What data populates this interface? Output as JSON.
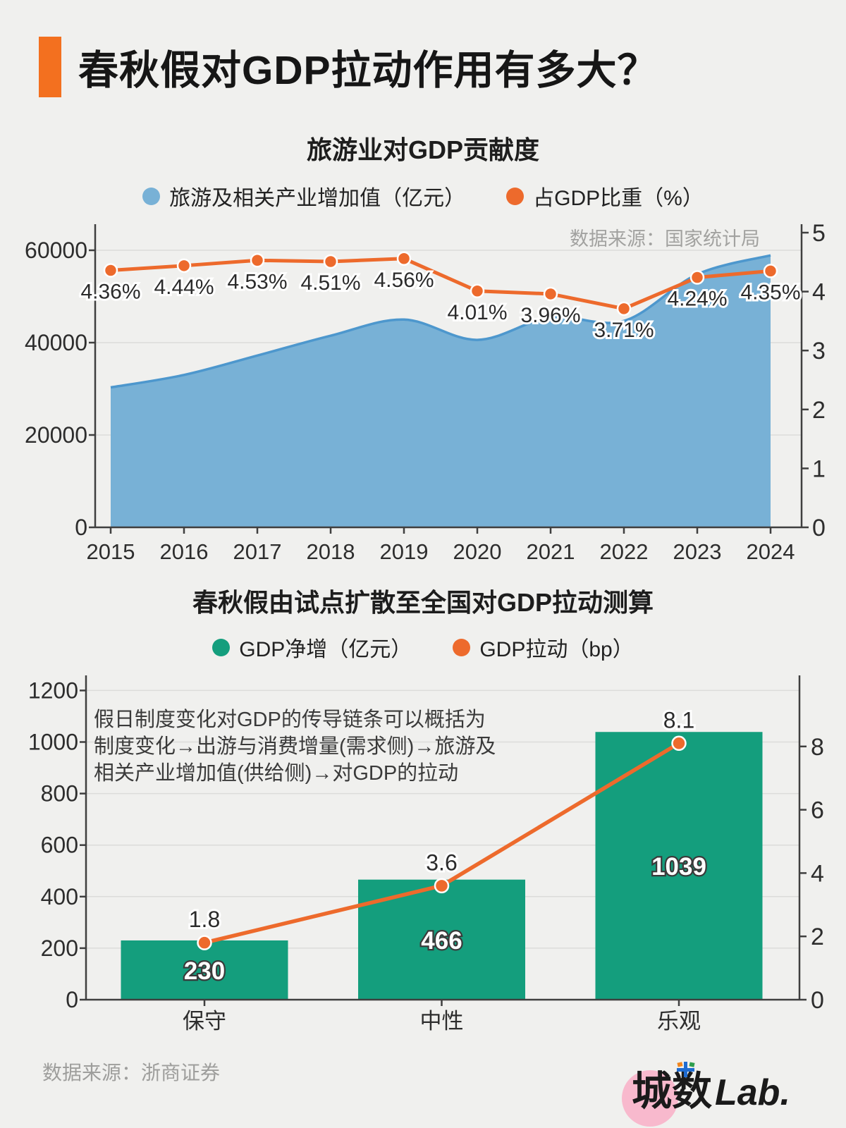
{
  "colors": {
    "background": "#f0f0ee",
    "accent_orange": "#f3701f",
    "line_orange": "#ed6a2c",
    "area_blue": "#78b1d6",
    "area_blue_stroke": "#4d97cd",
    "bar_green": "#149e7d",
    "logo_pink": "#f8b9cd"
  },
  "header": {
    "title": "春秋假对GDP拉动作用有多大？"
  },
  "chart_data": [
    {
      "type": "area+line",
      "title": "旅游业对GDP贡献度",
      "source": "数据来源：国家统计局",
      "x": [
        2015,
        2016,
        2017,
        2018,
        2019,
        2020,
        2021,
        2022,
        2023,
        2024
      ],
      "left_axis": {
        "ticks": [
          0,
          20000,
          40000,
          60000
        ],
        "max": 65600
      },
      "right_axis": {
        "ticks": [
          0,
          1,
          2,
          3,
          4,
          5
        ],
        "max": 5.1
      },
      "grid": true,
      "legend_position": "top",
      "series": [
        {
          "name": "旅游及相关产业增加值（亿元）",
          "type": "area",
          "axis": "left",
          "color": "#78b1d6",
          "stroke": "#4d97cd",
          "values": [
            30300,
            33000,
            37200,
            41500,
            45000,
            40600,
            45500,
            44700,
            54800,
            58900
          ]
        },
        {
          "name": "占GDP比重（%）",
          "type": "line",
          "axis": "right",
          "color": "#ed6a2c",
          "values": [
            4.36,
            4.44,
            4.53,
            4.51,
            4.56,
            4.01,
            3.96,
            3.71,
            4.24,
            4.35
          ],
          "labels": [
            "4.36%",
            "4.44%",
            "4.53%",
            "4.51%",
            "4.56%",
            "4.01%",
            "3.96%",
            "3.71%",
            "4.24%",
            "4.35%"
          ]
        }
      ]
    },
    {
      "type": "bar+line",
      "title": "春秋假由试点扩散至全国对GDP拉动测算",
      "categories": [
        "保守",
        "中性",
        "乐观"
      ],
      "left_axis": {
        "ticks": [
          0,
          200,
          400,
          600,
          800,
          1000,
          1200
        ],
        "max": 1255
      },
      "right_axis": {
        "ticks": [
          0,
          2,
          4,
          6,
          8
        ],
        "max": 10.2
      },
      "grid": true,
      "legend_position": "top",
      "annotation": [
        "假日制度变化对GDP的传导链条可以概括为",
        "制度变化→出游与消费增量(需求侧)→旅游及",
        "相关产业增加值(供给侧)→对GDP的拉动"
      ],
      "series": [
        {
          "name": "GDP净增（亿元）",
          "type": "bar",
          "axis": "left",
          "color": "#149e7d",
          "values": [
            230,
            466,
            1039
          ],
          "labels": [
            "230",
            "466",
            "1039"
          ]
        },
        {
          "name": "GDP拉动（bp）",
          "type": "line",
          "axis": "right",
          "color": "#ed6a2c",
          "values": [
            1.8,
            3.6,
            8.1
          ],
          "labels": [
            "1.8",
            "3.6",
            "8.1"
          ]
        }
      ]
    }
  ],
  "footer": {
    "source": "数据来源：浙商证券",
    "logo": {
      "cn": "城数",
      "en": "Lab."
    }
  }
}
